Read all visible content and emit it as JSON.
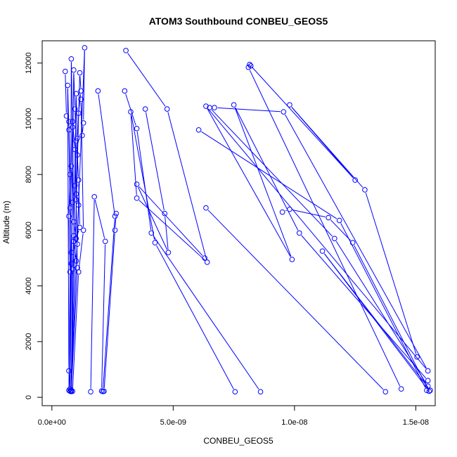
{
  "chart_data": {
    "type": "line",
    "title": "ATOM3 Southbound CONBEU_GEOS5",
    "xlabel": "CONBEU_GEOS5",
    "ylabel": "Altitude (m)",
    "xlim": [
      -4e-10,
      1.58e-08
    ],
    "ylim": [
      -300,
      12800
    ],
    "x_ticks": [
      0,
      5e-09,
      1e-08,
      1.5e-08
    ],
    "x_tick_labels": [
      "0.0e+00",
      "5.0e-09",
      "1.0e-08",
      "1.5e-08"
    ],
    "y_ticks": [
      0,
      2000,
      4000,
      6000,
      8000,
      10000,
      12000
    ],
    "y_tick_labels": [
      "0",
      "2000",
      "4000",
      "6000",
      "8000",
      "10000",
      "12000"
    ],
    "color": "#0000ff",
    "marker": "open-circle",
    "series": [
      {
        "points": [
          [
            5.5e-10,
            11700
          ],
          [
            6e-10,
            10100
          ],
          [
            7e-10,
            9900
          ],
          [
            7.5e-10,
            8000
          ],
          [
            7e-10,
            6500
          ],
          [
            7.5e-10,
            4500
          ],
          [
            7e-10,
            250
          ],
          [
            7.5e-10,
            220
          ],
          [
            8e-10,
            12150
          ],
          [
            8.5e-10,
            9700
          ],
          [
            8e-10,
            8300
          ],
          [
            8.5e-10,
            7000
          ],
          [
            8e-10,
            5200
          ],
          [
            7.5e-10,
            300
          ],
          [
            7e-10,
            950
          ],
          [
            6.5e-10,
            11200
          ],
          [
            7e-10,
            9600
          ],
          [
            7.5e-10,
            6800
          ],
          [
            8e-10,
            4800
          ],
          [
            7.5e-10,
            230
          ],
          [
            9e-10,
            11750
          ],
          [
            9.5e-10,
            10350
          ],
          [
            1e-09,
            9200
          ],
          [
            9.5e-10,
            7600
          ],
          [
            9e-10,
            5800
          ],
          [
            8.5e-10,
            4600
          ],
          [
            8e-10,
            210
          ],
          [
            1e-09,
            10900
          ],
          [
            1.05e-09,
            9300
          ],
          [
            1e-09,
            7300
          ],
          [
            1.1e-09,
            6900
          ],
          [
            1.05e-09,
            5500
          ],
          [
            1e-09,
            4900
          ],
          [
            9e-10,
            5600
          ],
          [
            8e-10,
            250
          ],
          [
            1.15e-09,
            11650
          ],
          [
            1.2e-09,
            11000
          ],
          [
            1.1e-09,
            10200
          ],
          [
            1.05e-09,
            8700
          ],
          [
            1.1e-09,
            7800
          ],
          [
            1.15e-09,
            6100
          ],
          [
            1e-09,
            5700
          ],
          [
            9e-10,
            6300
          ],
          [
            8.5e-10,
            9900
          ],
          [
            9.5e-10,
            8900
          ],
          [
            1e-09,
            7100
          ],
          [
            1.05e-09,
            4650
          ],
          [
            8e-10,
            240
          ],
          [
            1.35e-09,
            12550
          ],
          [
            1.3e-09,
            9850
          ],
          [
            1.25e-09,
            9400
          ],
          [
            1.2e-09,
            10700
          ],
          [
            1.3e-09,
            6000
          ],
          [
            1.1e-09,
            4500
          ],
          [
            8.5e-10,
            215
          ]
        ]
      },
      {
        "points": [
          [
            1.9e-09,
            11000
          ],
          [
            2.6e-09,
            6500
          ],
          [
            2.1e-09,
            210
          ]
        ]
      },
      {
        "points": [
          [
            1.6e-09,
            200
          ],
          [
            1.75e-09,
            7200
          ],
          [
            2.2e-09,
            5600
          ],
          [
            2.05e-09,
            230
          ]
        ]
      },
      {
        "points": [
          [
            2.65e-09,
            6600
          ],
          [
            2.6e-09,
            6000
          ],
          [
            2.15e-09,
            220
          ]
        ]
      },
      {
        "points": [
          [
            3.05e-09,
            12450
          ],
          [
            4.75e-09,
            10350
          ],
          [
            6.4e-09,
            4850
          ],
          [
            3.5e-09,
            7150
          ],
          [
            3.25e-09,
            10250
          ],
          [
            4.25e-09,
            5550
          ],
          [
            7.55e-09,
            200
          ]
        ]
      },
      {
        "points": [
          [
            3e-09,
            11000
          ],
          [
            3.5e-09,
            9650
          ],
          [
            4.1e-09,
            5900
          ],
          [
            8.6e-09,
            200
          ]
        ]
      },
      {
        "points": [
          [
            3.85e-09,
            10350
          ],
          [
            4.65e-09,
            6600
          ],
          [
            4.8e-09,
            5200
          ],
          [
            3.5e-09,
            7650
          ],
          [
            6.3e-09,
            5000
          ]
        ]
      },
      {
        "points": [
          [
            6.05e-09,
            9600
          ],
          [
            1.185e-08,
            6350
          ],
          [
            1.545e-08,
            250
          ]
        ]
      },
      {
        "points": [
          [
            6.35e-09,
            6800
          ],
          [
            1.375e-08,
            200
          ]
        ]
      },
      {
        "points": [
          [
            6.5e-09,
            10400
          ],
          [
            1.165e-08,
            5700
          ],
          [
            1.55e-08,
            400
          ]
        ]
      },
      {
        "points": [
          [
            6.7e-09,
            10400
          ],
          [
            9.55e-09,
            10250
          ],
          [
            1.55e-08,
            950
          ],
          [
            6.35e-09,
            10450
          ],
          [
            9.9e-09,
            4950
          ],
          [
            7.5e-09,
            10500
          ],
          [
            1.02e-08,
            5900
          ],
          [
            1.55e-08,
            600
          ]
        ]
      },
      {
        "points": [
          [
            8.15e-09,
            11950
          ],
          [
            1.25e-08,
            7800
          ],
          [
            9.8e-09,
            10500
          ],
          [
            1.29e-08,
            7450
          ],
          [
            1.505e-08,
            1450
          ]
        ]
      },
      {
        "points": [
          [
            8.2e-09,
            11900
          ],
          [
            8.1e-09,
            11850
          ],
          [
            1.44e-08,
            300
          ]
        ]
      },
      {
        "points": [
          [
            9.5e-09,
            6650
          ],
          [
            9.8e-09,
            6750
          ],
          [
            1.14e-08,
            6450
          ],
          [
            1.24e-08,
            5550
          ],
          [
            1.555e-08,
            220
          ],
          [
            1.115e-08,
            5250
          ],
          [
            1.56e-08,
            250
          ]
        ]
      }
    ]
  }
}
